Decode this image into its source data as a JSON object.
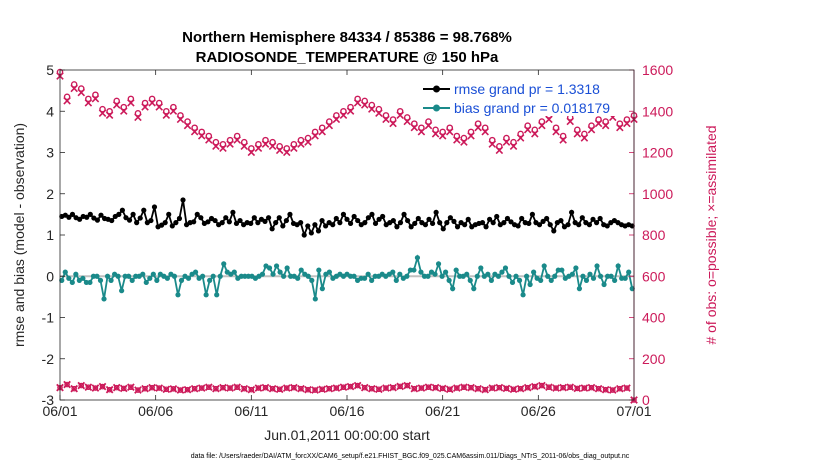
{
  "chart_data": {
    "type": "line",
    "title_line1": "Northern Hemisphere 84334 / 85386 = 98.768%",
    "title_line2": "RADIOSONDE_TEMPERATURE @ 150 hPa",
    "xlabel": "Jun.01,2011 00:00:00 start",
    "ylabel_left": "rmse and bias (model - observation)",
    "ylabel_right": "# of obs: o=possible; ×=assimilated",
    "footer": "data file: /Users/raeder/DAI/ATM_forcXX/CAM6_setup/f.e21.FHIST_BGC.f09_025.CAM6assim.011/Diags_NTrS_2011-06/obs_diag_output.nc",
    "x_ticks": [
      "06/01",
      "06/06",
      "06/11",
      "06/16",
      "06/21",
      "06/26",
      "07/01"
    ],
    "xlim_days": [
      0,
      30
    ],
    "ylim_left": [
      -3,
      5
    ],
    "y_ticks_left": [
      "-3",
      "-2",
      "-1",
      "0",
      "1",
      "2",
      "3",
      "4",
      "5"
    ],
    "ylim_right": [
      0,
      1600
    ],
    "y_ticks_right": [
      "0",
      "200",
      "400",
      "600",
      "800",
      "1000",
      "1200",
      "1400",
      "1600"
    ],
    "grid": false,
    "legend_position": "top-right",
    "colors": {
      "rmse": "#000000",
      "bias": "#1a8a8a",
      "obs": "#cc1a5a",
      "zero_line": "#c0c0c0",
      "legend_text": "#1a4fd6"
    },
    "series": [
      {
        "name": "rmse grand pr = 1.3318",
        "axis": "left",
        "values": [
          1.45,
          1.48,
          1.43,
          1.5,
          1.42,
          1.38,
          1.45,
          1.43,
          1.5,
          1.41,
          1.36,
          1.48,
          1.4,
          1.38,
          1.35,
          1.45,
          1.5,
          1.6,
          1.42,
          1.36,
          1.5,
          1.3,
          1.41,
          1.6,
          1.3,
          1.35,
          1.68,
          1.2,
          1.24,
          1.3,
          1.5,
          1.22,
          1.3,
          1.4,
          1.85,
          1.25,
          1.3,
          1.32,
          1.5,
          1.42,
          1.28,
          1.32,
          1.4,
          1.35,
          1.25,
          1.3,
          1.42,
          1.32,
          1.55,
          1.28,
          1.35,
          1.25,
          1.3,
          1.28,
          1.42,
          1.3,
          1.38,
          1.33,
          1.42,
          1.15,
          1.3,
          1.42,
          1.22,
          1.35,
          1.5,
          1.28,
          1.25,
          1.3,
          1.0,
          1.22,
          1.05,
          1.25,
          1.1,
          1.35,
          1.22,
          1.3,
          1.25,
          1.4,
          1.3,
          1.5,
          1.38,
          1.28,
          1.45,
          1.35,
          1.25,
          1.3,
          1.42,
          1.5,
          1.28,
          1.38,
          1.45,
          1.25,
          1.3,
          1.35,
          1.2,
          1.3,
          1.5,
          1.35,
          1.2,
          1.28,
          1.4,
          1.3,
          1.25,
          1.38,
          1.28,
          1.55,
          1.3,
          1.15,
          1.3,
          1.42,
          1.33,
          1.2,
          1.3,
          1.25,
          1.38,
          1.2,
          1.25,
          1.28,
          1.3,
          1.2,
          1.38,
          1.3,
          1.45,
          1.25,
          1.3,
          1.4,
          1.32,
          1.25,
          1.22,
          1.4,
          1.3,
          1.28,
          1.5,
          1.3,
          1.25,
          1.33,
          1.4,
          1.25,
          1.1,
          1.3,
          1.35,
          1.2,
          1.25,
          1.55,
          1.3,
          1.25,
          1.42,
          1.3,
          1.25,
          1.38,
          1.3,
          1.4,
          1.25,
          1.22,
          1.3,
          1.35,
          1.3,
          1.25,
          1.22,
          1.25,
          1.22
        ]
      },
      {
        "name": "bias grand pr = 0.018179",
        "axis": "left",
        "values": [
          -0.1,
          0.1,
          -0.05,
          -0.15,
          0.05,
          -0.1,
          -0.05,
          -0.15,
          -0.15,
          0.0,
          0.0,
          -0.1,
          -0.55,
          0.0,
          -0.1,
          0.05,
          0.0,
          -0.35,
          0.0,
          0.0,
          -0.1,
          0.0,
          0.0,
          0.05,
          -0.15,
          -0.05,
          0.05,
          -0.1,
          0.05,
          0.0,
          -0.05,
          0.05,
          0.0,
          -0.45,
          -0.1,
          0.0,
          -0.05,
          0.05,
          0.1,
          -0.05,
          0.0,
          -0.45,
          -0.1,
          0.0,
          -0.45,
          0.0,
          0.3,
          0.1,
          0.05,
          0.1,
          -0.05,
          0.0,
          0.0,
          0.0,
          0.0,
          -0.05,
          0.0,
          0.05,
          0.25,
          0.2,
          0.05,
          0.25,
          0.1,
          0.0,
          0.2,
          0.0,
          0.0,
          -0.05,
          0.15,
          0.05,
          0.0,
          -0.1,
          -0.55,
          0.15,
          -0.3,
          0.05,
          0.1,
          -0.05,
          0.0,
          0.05,
          0.0,
          0.05,
          0.0,
          0.0,
          -0.1,
          -0.05,
          -0.05,
          0.05,
          -0.1,
          0.0,
          0.0,
          0.05,
          0.0,
          0.05,
          0.1,
          -0.1,
          0.05,
          -0.05,
          0.0,
          0.15,
          0.15,
          0.45,
          0.1,
          0.0,
          0.0,
          0.1,
          0.05,
          0.3,
          0.0,
          0.1,
          -0.1,
          -0.3,
          0.15,
          0.0,
          0.0,
          0.05,
          -0.1,
          -0.3,
          0.0,
          0.2,
          0.0,
          0.05,
          -0.1,
          0.05,
          0.0,
          0.1,
          0.2,
          0.0,
          -0.15,
          0.0,
          -0.1,
          -0.45,
          0.0,
          -0.2,
          0.1,
          -0.05,
          -0.1,
          0.25,
          0.0,
          -0.1,
          0.0,
          0.15,
          0.15,
          -0.05,
          0.0,
          0.05,
          0.2,
          -0.3,
          0.0,
          -0.1,
          0.05,
          -0.05,
          0.25,
          0.0,
          -0.2,
          0.0,
          0.0,
          -0.1,
          0.25,
          -0.05,
          -0.05,
          0.1,
          -0.3
        ]
      },
      {
        "name": "possible",
        "axis": "right",
        "marker": "o",
        "values": [
          1590,
          1470,
          1530,
          1510,
          1460,
          1480,
          1410,
          1400,
          1450,
          1420,
          1460,
          1390,
          1440,
          1460,
          1440,
          1400,
          1420,
          1380,
          1350,
          1320,
          1300,
          1280,
          1250,
          1240,
          1260,
          1280,
          1250,
          1220,
          1240,
          1260,
          1250,
          1230,
          1220,
          1240,
          1260,
          1270,
          1300,
          1320,
          1350,
          1380,
          1400,
          1420,
          1460,
          1450,
          1430,
          1410,
          1380,
          1360,
          1400,
          1370,
          1340,
          1320,
          1350,
          1310,
          1300,
          1320,
          1280,
          1270,
          1300,
          1340,
          1320,
          1260,
          1230,
          1270,
          1250,
          1290,
          1330,
          1310,
          1350,
          1380,
          1320,
          1280,
          1370,
          1310,
          1290,
          1330,
          1360,
          1350,
          1390,
          1340,
          1360,
          1380
        ]
      },
      {
        "name": "assimilated",
        "axis": "right",
        "marker": "x",
        "values": [
          60,
          75,
          55,
          70,
          62,
          58,
          65,
          50,
          60,
          56,
          62,
          48,
          55,
          60,
          58,
          52,
          54,
          48,
          50,
          55,
          58,
          62,
          55,
          60,
          58,
          62,
          55,
          50,
          58,
          60,
          55,
          52,
          58,
          60,
          55,
          50,
          48,
          52,
          55,
          58,
          62,
          65,
          70,
          60,
          55,
          52,
          58,
          60,
          66,
          70,
          55,
          58,
          62,
          60,
          56,
          52,
          58,
          62,
          60,
          55,
          50,
          58,
          60,
          56,
          52,
          55,
          60,
          65,
          70,
          62,
          58,
          60,
          62,
          56,
          58,
          60,
          55,
          50,
          48,
          55,
          58,
          0
        ]
      }
    ]
  }
}
